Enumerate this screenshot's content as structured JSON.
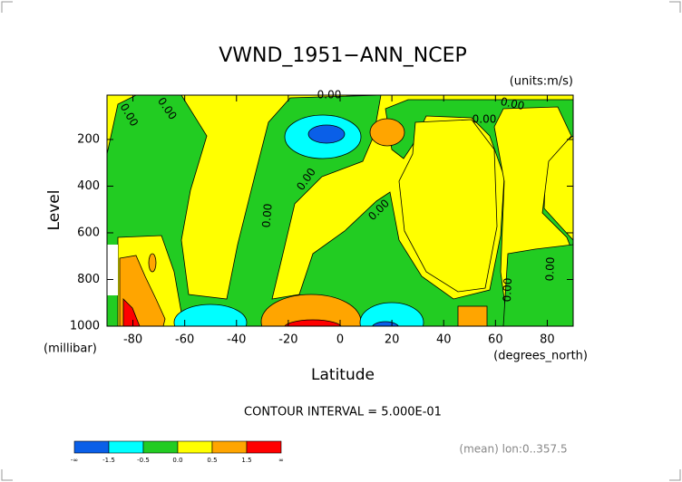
{
  "chart_data": {
    "type": "contour",
    "title": "VWND_1951−ANN_NCEP",
    "units": "(units:m/s)",
    "xlabel": "Latitude",
    "ylabel": "Level",
    "x_unit": "(degrees_north)",
    "y_unit": "(millibar)",
    "xlim": [
      -90,
      90
    ],
    "xticks": [
      -80,
      -60,
      -40,
      -20,
      0,
      20,
      40,
      60,
      80
    ],
    "ylim": [
      1000,
      10
    ],
    "yticks": [
      200,
      400,
      600,
      800,
      1000
    ],
    "contour_labels": [
      {
        "value": 0,
        "label": "0.00"
      },
      {
        "value": 0,
        "label": "0.00"
      },
      {
        "value": 0,
        "label": "0.00"
      },
      {
        "value": 0,
        "label": "0.00"
      },
      {
        "value": 0,
        "label": "0.00"
      },
      {
        "value": 0,
        "label": "0.00"
      },
      {
        "value": 0,
        "label": "0.00"
      },
      {
        "value": 0,
        "label": "0.00"
      },
      {
        "value": 0,
        "label": "0.00"
      },
      {
        "value": 0,
        "label": "0.00"
      }
    ],
    "contour_interval": "CONTOUR INTERVAL = 5.000E-01",
    "footer": "(mean) lon:0..357.5",
    "colorbar": {
      "colors": [
        "#0a5fe8",
        "#00ffff",
        "#22cc22",
        "#ffff00",
        "#ffa500",
        "#ff0000"
      ],
      "labels": [
        "-∞",
        "-1.5",
        "-0.5",
        "0.0",
        "0.5",
        "1.5",
        "∞"
      ]
    }
  }
}
